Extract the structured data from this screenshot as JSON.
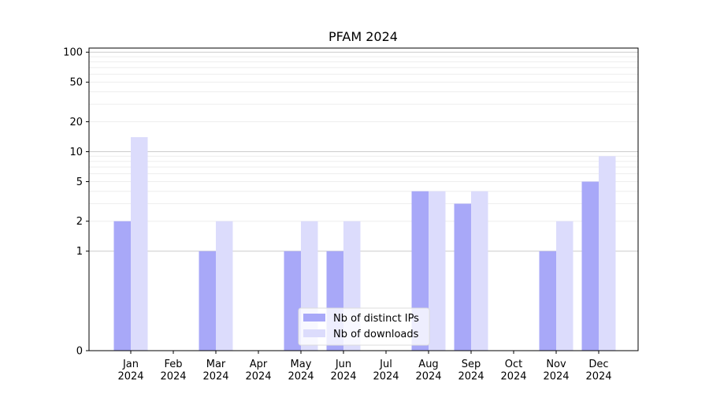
{
  "chart_data": {
    "type": "bar",
    "title": "PFAM 2024",
    "xlabel": "",
    "ylabel": "",
    "yscale": "symlog",
    "ylim": [
      0,
      110
    ],
    "yticks": [
      0,
      1,
      2,
      5,
      10,
      20,
      50,
      100
    ],
    "ytick_labels": [
      "0",
      "1",
      "2",
      "5",
      "10",
      "20",
      "50",
      "100"
    ],
    "categories": [
      "Jan\n2024",
      "Feb\n2024",
      "Mar\n2024",
      "Apr\n2024",
      "May\n2024",
      "Jun\n2024",
      "Jul\n2024",
      "Aug\n2024",
      "Sep\n2024",
      "Oct\n2024",
      "Nov\n2024",
      "Dec\n2024"
    ],
    "series": [
      {
        "name": "Nb of distinct IPs",
        "color": "#a8a8f8",
        "values": [
          2,
          0,
          1,
          0,
          1,
          1,
          0,
          4,
          3,
          0,
          1,
          5
        ]
      },
      {
        "name": "Nb of downloads",
        "color": "#dcdcfc",
        "values": [
          14,
          0,
          2,
          0,
          2,
          2,
          0,
          4,
          4,
          0,
          2,
          9
        ]
      }
    ],
    "grid": true,
    "legend_position": "lower-center"
  }
}
